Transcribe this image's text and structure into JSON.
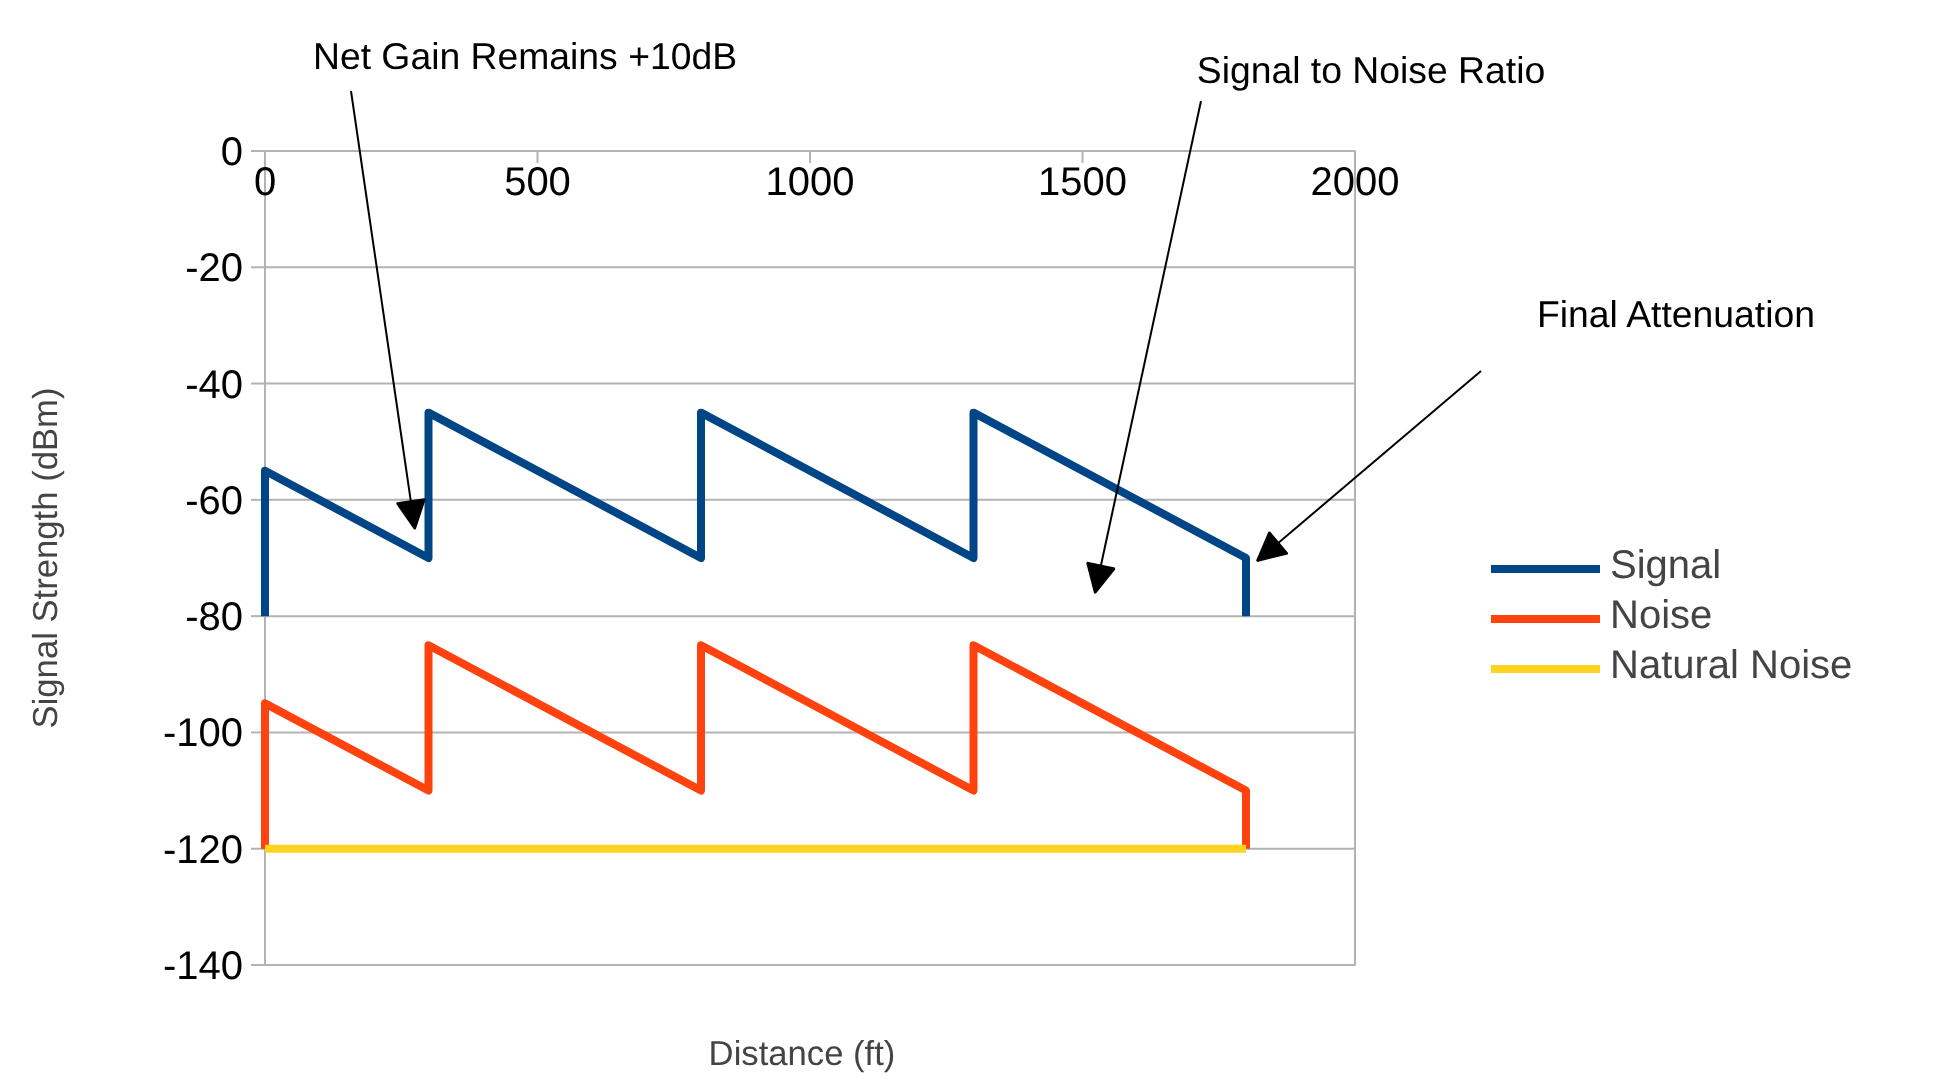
{
  "chart_data": {
    "type": "line",
    "xlabel": "Distance (ft)",
    "ylabel": "Signal Strength (dBm)",
    "xlim": [
      0,
      2000
    ],
    "xticks": [
      0,
      500,
      1000,
      1500,
      2000
    ],
    "ylim": [
      -140,
      0
    ],
    "yticks": [
      0,
      -20,
      -40,
      -60,
      -80,
      -100,
      -120,
      -140
    ],
    "grid": "y",
    "legend": "right",
    "marker": "none",
    "line_style": "solid",
    "series": [
      {
        "name": "Signal",
        "color": "#004586",
        "x": [
          0,
          0,
          300,
          300,
          800,
          800,
          1300,
          1300,
          1800,
          1800
        ],
        "values": [
          -80,
          -55,
          -70,
          -45,
          -70,
          -45,
          -70,
          -45,
          -70,
          -80
        ]
      },
      {
        "name": "Noise",
        "color": "#ff420e",
        "x": [
          0,
          0,
          300,
          300,
          800,
          800,
          1300,
          1300,
          1800,
          1800
        ],
        "values": [
          -120,
          -95,
          -110,
          -85,
          -110,
          -85,
          -110,
          -85,
          -110,
          -120
        ]
      },
      {
        "name": "Natural Noise",
        "color": "#ffd320",
        "x": [
          0,
          1800
        ],
        "values": [
          -120,
          -120
        ]
      }
    ],
    "annotations": [
      {
        "text": "Net Gain Remains +10dB",
        "x": 275,
        "y": -65
      },
      "Signal to Noise Ratio",
      "Final Attenuation"
    ]
  }
}
